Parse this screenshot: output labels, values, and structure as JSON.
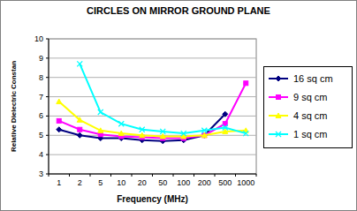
{
  "chart_data": {
    "type": "line",
    "title": "CIRCLES ON MIRROR GROUND PLANE",
    "x_label": "Frequency (MHz)",
    "y_label": "Relative Dielectric Constan",
    "categories": [
      "1",
      "2",
      "5",
      "10",
      "20",
      "50",
      "100",
      "200",
      "500",
      "1000"
    ],
    "series": [
      {
        "name": "16 sq cm",
        "color": "#000080",
        "marker": "diamond",
        "line_style": "solid",
        "values": [
          5.3,
          5.0,
          4.85,
          4.85,
          4.75,
          4.7,
          4.75,
          5.0,
          6.1,
          null
        ]
      },
      {
        "name": "9 sq cm",
        "color": "#ff00ff",
        "marker": "square",
        "line_style": "solid",
        "values": [
          5.75,
          5.3,
          5.05,
          4.95,
          4.9,
          4.85,
          4.85,
          5.0,
          5.6,
          7.7
        ]
      },
      {
        "name": "4 sq cm",
        "color": "#ffff00",
        "marker": "triangle",
        "line_style": "solid",
        "values": [
          6.75,
          5.8,
          5.25,
          5.1,
          5.0,
          4.95,
          4.95,
          5.0,
          5.2,
          5.25
        ]
      },
      {
        "name": "1 sq cm",
        "color": "#00ffff",
        "marker": "x",
        "line_style": "solid",
        "values": [
          null,
          8.7,
          6.2,
          5.6,
          5.3,
          5.2,
          5.1,
          5.25,
          5.4,
          5.1
        ]
      }
    ],
    "ylim": [
      3,
      10
    ],
    "yticks": [
      3,
      4,
      5,
      6,
      7,
      8,
      9,
      10
    ],
    "grid": true,
    "legend": "right"
  }
}
